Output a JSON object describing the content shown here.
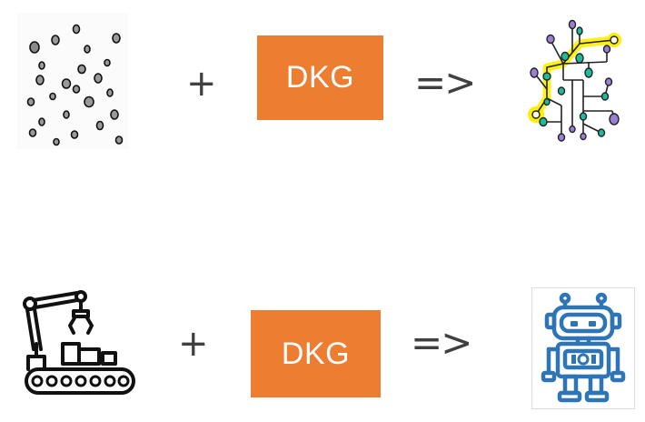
{
  "rows": [
    {
      "plus": "+",
      "box_label": "DKG",
      "arrow": "=>",
      "left_icon": "scattered-dots-icon",
      "right_icon": "knowledge-graph-icon"
    },
    {
      "plus": "+",
      "box_label": "DKG",
      "arrow": "=>",
      "left_icon": "factory-robot-arm-icon",
      "right_icon": "robot-icon"
    }
  ],
  "colors": {
    "box": "#ed7d31",
    "box_text": "#ffffff",
    "operator": "#404040",
    "robot_blue": "#2e75b6",
    "graph_highlight": "#ffee00",
    "graph_teal": "#1abc9c",
    "graph_purple": "#9b7fd4"
  }
}
